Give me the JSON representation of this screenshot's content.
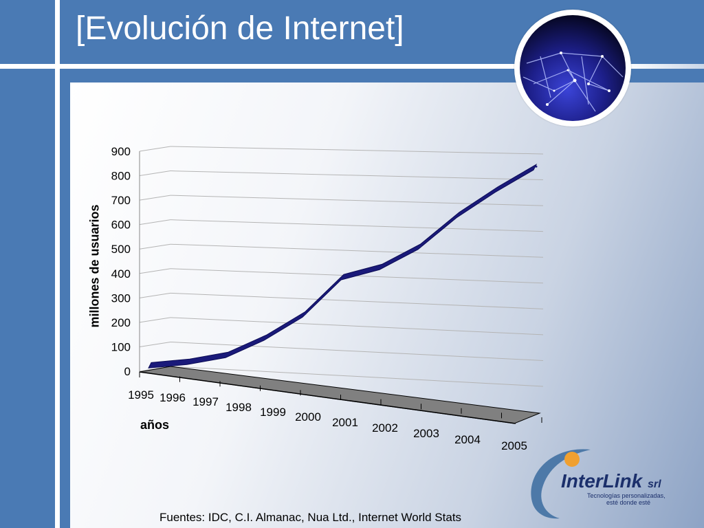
{
  "slide": {
    "title": "[Evolución de Internet]",
    "source": "Fuentes: IDC, C.I. Almanac, Nua Ltd., Internet World Stats"
  },
  "logo": {
    "name": "InterLink",
    "suffix": "srl",
    "tagline_line1": "Tecnologías personalizadas,",
    "tagline_line2": "esté donde esté"
  },
  "colors": {
    "background": "#4a7ab4",
    "line": "#1a1a7a",
    "floor": "#808080"
  },
  "chart_data": {
    "type": "line",
    "title": "",
    "xlabel": "años",
    "ylabel": "millones de usuarios",
    "categories": [
      "1995",
      "1996",
      "1997",
      "1998",
      "1999",
      "2000",
      "2001",
      "2002",
      "2003",
      "2004",
      "2005"
    ],
    "series": [
      {
        "values": [
          16,
          36,
          70,
          147,
          248,
          407,
          455,
          544,
          680,
          790,
          888
        ]
      }
    ],
    "yticks": [
      0,
      100,
      200,
      300,
      400,
      500,
      600,
      700,
      800,
      900
    ],
    "ylim": [
      0,
      900
    ],
    "grid": true,
    "legend": "none",
    "style": "3d-line"
  }
}
